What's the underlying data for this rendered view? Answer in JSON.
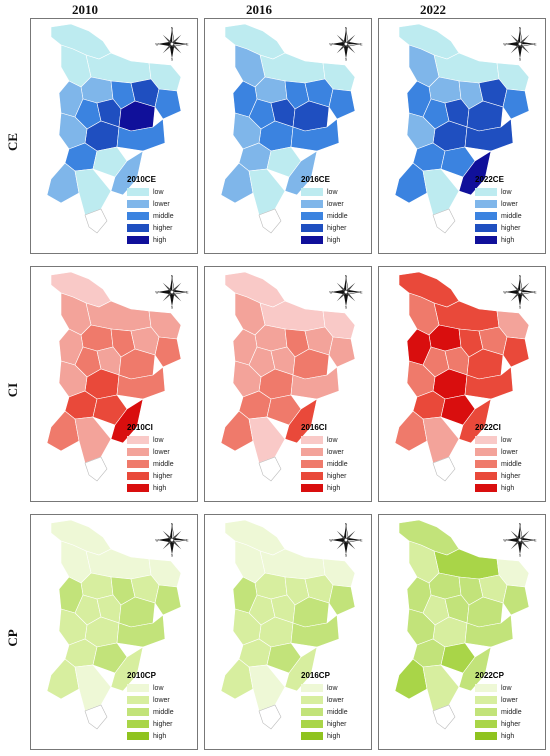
{
  "columns": [
    "2010",
    "2016",
    "2022"
  ],
  "rows": [
    {
      "label": "CE",
      "palette": [
        "#bdebf0",
        "#7fb6ea",
        "#3b83e0",
        "#1f4fc0",
        "#10109a"
      ]
    },
    {
      "label": "CI",
      "palette": [
        "#f9c9c7",
        "#f3a39a",
        "#ef7a6b",
        "#e9493a",
        "#d90e0e"
      ]
    },
    {
      "label": "CP",
      "palette": [
        "#eef8d6",
        "#d7ee9f",
        "#c2e37a",
        "#a9d548",
        "#8fc31f"
      ]
    }
  ],
  "panels": [
    {
      "legend_title": "2010CE"
    },
    {
      "legend_title": "2016CE"
    },
    {
      "legend_title": "2022CE"
    },
    {
      "legend_title": "2010CI"
    },
    {
      "legend_title": "2016CI"
    },
    {
      "legend_title": "2022CI"
    },
    {
      "legend_title": "2010CP"
    },
    {
      "legend_title": "2016CP"
    },
    {
      "legend_title": "2022CP"
    }
  ],
  "legend_labels": [
    "low",
    "lower",
    "middle",
    "higher",
    "high"
  ],
  "compass_letters": {
    "n": "N",
    "s": "S",
    "e": "E",
    "w": "W"
  },
  "panel_levels": [
    [
      0,
      0,
      0,
      0,
      1,
      2,
      3,
      2,
      1,
      2,
      3,
      4,
      3,
      2,
      1,
      2,
      0,
      1,
      1,
      0
    ],
    [
      0,
      0,
      0,
      1,
      1,
      2,
      2,
      2,
      2,
      2,
      3,
      3,
      2,
      2,
      1,
      1,
      0,
      1,
      1,
      0
    ],
    [
      0,
      0,
      0,
      1,
      1,
      1,
      3,
      2,
      2,
      2,
      3,
      3,
      3,
      3,
      1,
      2,
      2,
      4,
      2,
      0
    ],
    [
      0,
      1,
      1,
      1,
      2,
      2,
      1,
      2,
      1,
      2,
      1,
      2,
      3,
      2,
      1,
      3,
      3,
      4,
      2,
      1
    ],
    [
      0,
      0,
      0,
      1,
      1,
      2,
      1,
      1,
      1,
      1,
      1,
      2,
      2,
      1,
      1,
      2,
      2,
      3,
      2,
      0
    ],
    [
      3,
      3,
      1,
      2,
      4,
      3,
      2,
      3,
      4,
      2,
      2,
      3,
      4,
      3,
      2,
      3,
      4,
      3,
      2,
      1
    ],
    [
      0,
      0,
      0,
      0,
      1,
      2,
      1,
      2,
      2,
      1,
      1,
      2,
      1,
      2,
      1,
      1,
      2,
      1,
      1,
      0
    ],
    [
      0,
      0,
      0,
      0,
      1,
      1,
      1,
      2,
      2,
      1,
      1,
      2,
      1,
      2,
      1,
      1,
      2,
      1,
      1,
      0
    ],
    [
      2,
      3,
      0,
      1,
      2,
      2,
      1,
      2,
      2,
      1,
      2,
      2,
      1,
      2,
      2,
      2,
      3,
      2,
      3,
      1
    ]
  ]
}
